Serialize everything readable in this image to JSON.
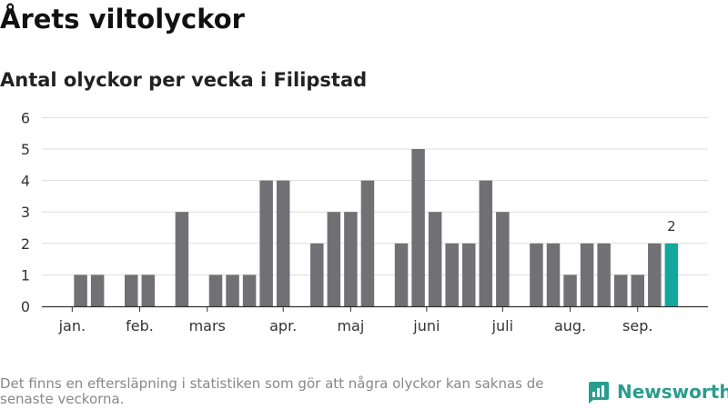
{
  "header": {
    "title": "Årets viltolyckor",
    "subtitle": "Antal olyckor per vecka i Filipstad"
  },
  "footer": {
    "note": "Det finns en eftersläpning i statistiken som gör att några olyckor kan saknas de senaste veckorna.",
    "brand": "Newsworthy"
  },
  "colors": {
    "bar": "#717075",
    "highlight": "#14a79c",
    "brand": "#2a9d8f"
  },
  "chart_data": {
    "type": "bar",
    "x_type": "week",
    "weeks": [
      1,
      2,
      3,
      4,
      5,
      6,
      7,
      8,
      9,
      10,
      11,
      12,
      13,
      14,
      15,
      16,
      17,
      18,
      19,
      20,
      21,
      22,
      23,
      24,
      25,
      26,
      27,
      28,
      29,
      30,
      31,
      32,
      33,
      34,
      35,
      36,
      37,
      38
    ],
    "values": [
      0,
      0,
      1,
      1,
      0,
      1,
      1,
      0,
      3,
      0,
      1,
      1,
      1,
      4,
      4,
      0,
      2,
      3,
      3,
      4,
      0,
      2,
      5,
      3,
      2,
      2,
      4,
      3,
      0,
      2,
      2,
      1,
      2,
      2,
      1,
      1,
      2,
      2
    ],
    "highlight_week": 38,
    "highlight_label": "2",
    "xlabel": "",
    "ylabel": "",
    "ylim": [
      0,
      6
    ],
    "yticks": [
      0,
      1,
      2,
      3,
      4,
      5,
      6
    ],
    "month_ticks": [
      {
        "label": "jan.",
        "week": 2.5
      },
      {
        "label": "feb.",
        "week": 6.5
      },
      {
        "label": "mars",
        "week": 10.5
      },
      {
        "label": "apr.",
        "week": 15.0
      },
      {
        "label": "maj",
        "week": 19.0
      },
      {
        "label": "juni",
        "week": 23.5
      },
      {
        "label": "juli",
        "week": 28.0
      },
      {
        "label": "aug.",
        "week": 32.0
      },
      {
        "label": "sep.",
        "week": 36.0
      }
    ],
    "grid": true
  }
}
